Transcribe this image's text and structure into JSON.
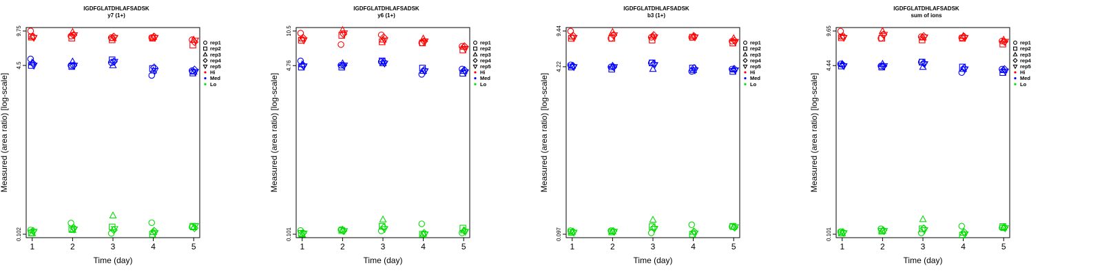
{
  "chart_data": [
    {
      "type": "scatter",
      "title": "IGDFGLATDHLAFSADSK",
      "subtitle": "y7 (1+)",
      "xlabel": "Time (day)",
      "ylabel": "Measured (area ratio) [log-scale]",
      "log_y": true,
      "ylim": [
        0.102,
        9.75
      ],
      "y_ticks": [
        "0.102",
        "4.5",
        "9.75"
      ],
      "x": [
        1,
        2,
        3,
        4,
        5
      ],
      "grid": false,
      "legend": "right",
      "series": [
        {
          "name": "Hi",
          "color": "#ff0000",
          "points": {
            "rep1": [
              9.75,
              8.7,
              8.4,
              8.4,
              8.0
            ],
            "rep2": [
              8.5,
              8.3,
              8.0,
              8.3,
              7.1
            ],
            "rep3": [
              8.6,
              9.5,
              8.3,
              8.5,
              8.0
            ],
            "rep4": [
              8.6,
              8.9,
              8.6,
              8.6,
              7.6
            ],
            "rep5": [
              8.4,
              8.9,
              8.4,
              8.4,
              7.9
            ]
          }
        },
        {
          "name": "Med",
          "color": "#0000ff",
          "points": {
            "rep1": [
              5.2,
              4.5,
              4.8,
              3.6,
              4.0
            ],
            "rep2": [
              4.5,
              4.4,
              5.1,
              4.2,
              3.8
            ],
            "rep3": [
              4.8,
              4.9,
              4.5,
              4.0,
              3.9
            ],
            "rep4": [
              4.7,
              4.5,
              4.9,
              4.3,
              4.1
            ],
            "rep5": [
              4.5,
              4.5,
              4.9,
              4.0,
              3.9
            ]
          }
        },
        {
          "name": "Lo",
          "color": "#00dd00",
          "points": {
            "rep1": [
              0.112,
              0.131,
              0.104,
              0.132,
              0.12
            ],
            "rep2": [
              0.105,
              0.115,
              0.12,
              0.102,
              0.122
            ],
            "rep3": [
              0.104,
              0.112,
              0.155,
              0.107,
              0.119
            ],
            "rep4": [
              0.11,
              0.118,
              0.112,
              0.11,
              0.117
            ],
            "rep5": [
              0.108,
              0.114,
              0.115,
              0.105,
              0.123
            ]
          }
        }
      ],
      "legend_entries": [
        "rep1",
        "rep2",
        "rep3",
        "rep4",
        "rep5",
        "Hi",
        "Med",
        "Lo"
      ]
    },
    {
      "type": "scatter",
      "title": "IGDFGLATDHLAFSADSK",
      "subtitle": "y6 (1+)",
      "xlabel": "Time (day)",
      "ylabel": "Measured (area ratio) [log-scale]",
      "log_y": true,
      "ylim": [
        0.101,
        10.5
      ],
      "y_ticks": [
        "0.101",
        "4.76",
        "10.5"
      ],
      "x": [
        1,
        2,
        3,
        4,
        5
      ],
      "grid": false,
      "legend": "right",
      "series": [
        {
          "name": "Hi",
          "color": "#ff0000",
          "points": {
            "rep1": [
              10.0,
              7.7,
              9.6,
              8.0,
              7.4
            ],
            "rep2": [
              8.5,
              9.5,
              8.2,
              8.0,
              6.8
            ],
            "rep3": [
              8.8,
              10.7,
              8.6,
              8.8,
              7.3
            ],
            "rep4": [
              9.0,
              9.8,
              9.1,
              8.3,
              7.4
            ],
            "rep5": [
              8.5,
              10.0,
              8.5,
              8.3,
              7.0
            ]
          }
        },
        {
          "name": "Med",
          "color": "#0000ff",
          "points": {
            "rep1": [
              5.3,
              4.8,
              5.2,
              3.9,
              4.4
            ],
            "rep2": [
              4.6,
              4.6,
              5.3,
              4.5,
              4.0
            ],
            "rep3": [
              4.9,
              5.0,
              5.0,
              4.2,
              4.2
            ],
            "rep4": [
              4.8,
              4.8,
              5.2,
              4.3,
              4.3
            ],
            "rep5": [
              4.7,
              4.8,
              5.0,
              4.2,
              4.1
            ]
          }
        },
        {
          "name": "Lo",
          "color": "#00dd00",
          "points": {
            "rep1": [
              0.11,
              0.112,
              0.109,
              0.128,
              0.104
            ],
            "rep2": [
              0.103,
              0.11,
              0.121,
              0.101,
              0.116
            ],
            "rep3": [
              0.1,
              0.112,
              0.141,
              0.102,
              0.11
            ],
            "rep4": [
              0.104,
              0.109,
              0.118,
              0.104,
              0.109
            ],
            "rep5": [
              0.103,
              0.109,
              0.114,
              0.101,
              0.107
            ]
          }
        }
      ],
      "legend_entries": [
        "rep1",
        "rep2",
        "rep3",
        "rep4",
        "rep5",
        "Hi",
        "Med",
        "Lo"
      ]
    },
    {
      "type": "scatter",
      "title": "IGDFGLATDHLAFSADSK",
      "subtitle": "b3 (1+)",
      "xlabel": "Time (day)",
      "ylabel": "Measured (area ratio) [log-scale]",
      "log_y": true,
      "ylim": [
        0.097,
        9.44
      ],
      "y_ticks": [
        "0.097",
        "4.22",
        "9.44"
      ],
      "x": [
        1,
        2,
        3,
        4,
        5
      ],
      "grid": false,
      "legend": "right",
      "series": [
        {
          "name": "Hi",
          "color": "#ff0000",
          "points": {
            "rep1": [
              9.4,
              8.0,
              8.2,
              8.2,
              7.5
            ],
            "rep2": [
              8.0,
              8.0,
              7.7,
              8.2,
              7.2
            ],
            "rep3": [
              8.3,
              9.2,
              8.4,
              8.4,
              8.0
            ],
            "rep4": [
              8.5,
              8.6,
              8.6,
              8.4,
              7.6
            ],
            "rep5": [
              8.1,
              8.6,
              8.2,
              8.2,
              7.4
            ]
          }
        },
        {
          "name": "Med",
          "color": "#0000ff",
          "points": {
            "rep1": [
              4.4,
              4.2,
              4.6,
              3.8,
              4.0
            ],
            "rep2": [
              4.2,
              4.0,
              4.6,
              4.1,
              3.8
            ],
            "rep3": [
              4.3,
              4.3,
              4.0,
              3.9,
              4.0
            ],
            "rep4": [
              4.3,
              4.2,
              4.5,
              4.1,
              4.0
            ],
            "rep5": [
              4.2,
              4.2,
              4.4,
              3.9,
              3.9
            ]
          }
        },
        {
          "name": "Lo",
          "color": "#00dd00",
          "points": {
            "rep1": [
              0.105,
              0.105,
              0.1,
              0.12,
              0.115
            ],
            "rep2": [
              0.101,
              0.102,
              0.115,
              0.097,
              0.116
            ],
            "rep3": [
              0.102,
              0.103,
              0.134,
              0.102,
              0.114
            ],
            "rep4": [
              0.103,
              0.104,
              0.112,
              0.103,
              0.113
            ],
            "rep5": [
              0.101,
              0.103,
              0.11,
              0.099,
              0.114
            ]
          }
        }
      ],
      "legend_entries": [
        "rep1",
        "rep2",
        "rep3",
        "rep4",
        "rep5",
        "Hi",
        "Med",
        "Lo"
      ]
    },
    {
      "type": "scatter",
      "title": "IGDFGLATDHLAFSADSK",
      "subtitle": "sum of ions",
      "xlabel": "Time (day)",
      "ylabel": "Measured (area ratio) [log-scale]",
      "log_y": true,
      "ylim": [
        0.101,
        9.65
      ],
      "y_ticks": [
        "0.101",
        "4.44",
        "9.65"
      ],
      "x": [
        1,
        2,
        3,
        4,
        5
      ],
      "grid": false,
      "legend": "right",
      "series": [
        {
          "name": "Hi",
          "color": "#ff0000",
          "points": {
            "rep1": [
              9.6,
              8.2,
              8.5,
              8.3,
              7.7
            ],
            "rep2": [
              8.3,
              8.2,
              7.9,
              8.2,
              7.2
            ],
            "rep3": [
              8.5,
              9.6,
              8.3,
              8.6,
              7.9
            ],
            "rep4": [
              8.6,
              8.9,
              8.6,
              8.5,
              7.6
            ],
            "rep5": [
              8.3,
              8.9,
              8.4,
              8.3,
              7.6
            ]
          }
        },
        {
          "name": "Med",
          "color": "#0000ff",
          "points": {
            "rep1": [
              4.6,
              4.4,
              4.8,
              3.8,
              4.1
            ],
            "rep2": [
              4.4,
              4.3,
              4.8,
              4.3,
              3.8
            ],
            "rep3": [
              4.6,
              4.6,
              4.3,
              4.1,
              4.0
            ],
            "rep4": [
              4.5,
              4.4,
              4.7,
              4.2,
              4.1
            ],
            "rep5": [
              4.4,
              4.4,
              4.6,
              4.1,
              3.9
            ]
          }
        },
        {
          "name": "Lo",
          "color": "#00dd00",
          "points": {
            "rep1": [
              0.107,
              0.114,
              0.104,
              0.121,
              0.117
            ],
            "rep2": [
              0.104,
              0.108,
              0.114,
              0.099,
              0.12
            ],
            "rep3": [
              0.103,
              0.109,
              0.141,
              0.104,
              0.117
            ],
            "rep4": [
              0.106,
              0.11,
              0.115,
              0.106,
              0.117
            ],
            "rep5": [
              0.104,
              0.109,
              0.111,
              0.101,
              0.116
            ]
          }
        }
      ],
      "legend_entries": [
        "rep1",
        "rep2",
        "rep3",
        "rep4",
        "rep5",
        "Hi",
        "Med",
        "Lo"
      ]
    }
  ]
}
